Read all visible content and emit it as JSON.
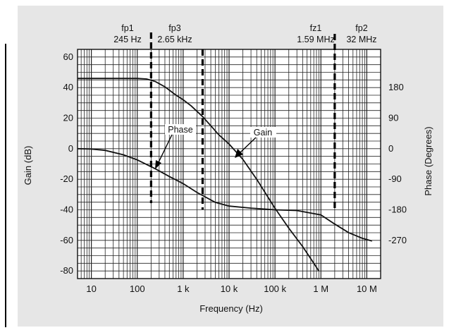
{
  "chart_data": {
    "type": "line",
    "title": "",
    "xlabel": "Frequency (Hz)",
    "ylabel": "Gain (dB)",
    "y2label": "Phase (Degrees)",
    "x_scale": "log",
    "xlim": [
      5,
      20000000
    ],
    "ylim": [
      -85,
      65
    ],
    "y2lim": [
      -382.5,
      292.5
    ],
    "x_ticks": [
      10,
      100,
      1000,
      10000,
      100000,
      1000000,
      10000000
    ],
    "x_tick_labels": [
      "10",
      "100",
      "1 k",
      "10 k",
      "100 k",
      "1 M",
      "10 M"
    ],
    "y_ticks": [
      -80,
      -60,
      -40,
      -20,
      0,
      20,
      40,
      60
    ],
    "y_tick_labels": [
      "-80",
      "-60",
      "-40",
      "-20",
      "0",
      "20",
      "40",
      "60"
    ],
    "y2_ticks": [
      -270,
      -180,
      -90,
      0,
      90,
      180
    ],
    "y2_tick_labels": [
      "-270",
      "-180",
      "-90",
      "0",
      "90",
      "180"
    ],
    "grid": true,
    "series": [
      {
        "name": "Gain",
        "x": [
          5,
          100,
          160,
          245,
          400,
          700,
          1000,
          1500,
          2650,
          4000,
          6000,
          10000,
          20000,
          40000,
          100000,
          200000,
          400000,
          700000,
          900000
        ],
        "y": [
          46,
          46,
          45.6,
          44,
          40.5,
          35,
          32,
          28,
          21,
          15,
          9,
          3,
          -7,
          -20,
          -39,
          -52,
          -64,
          -75,
          -80
        ]
      },
      {
        "name": "Phase",
        "x": [
          5,
          10,
          20,
          50,
          100,
          245,
          500,
          1000,
          2000,
          5000,
          10000,
          30000,
          100000,
          300000,
          1000000,
          2000000,
          4000000,
          8000000,
          13000000
        ],
        "y": [
          0,
          -1,
          -5,
          -18,
          -33,
          -59,
          -82,
          -103,
          -129,
          -158,
          -169,
          -175,
          -180,
          -182,
          -195,
          -222,
          -247,
          -264,
          -272
        ]
      }
    ],
    "annotations": [
      {
        "name": "fp1",
        "value": "245 Hz",
        "x": 200
      },
      {
        "name": "fp3",
        "value": "2.65 kHz",
        "x": 2650
      },
      {
        "name": "fz1",
        "value": "1.59 MHz",
        "x": 2000000
      },
      {
        "name": "fp2",
        "value": "32 MHz",
        "x": 2000000
      }
    ],
    "labels": {
      "gain": "Gain",
      "phase": "Phase"
    }
  }
}
